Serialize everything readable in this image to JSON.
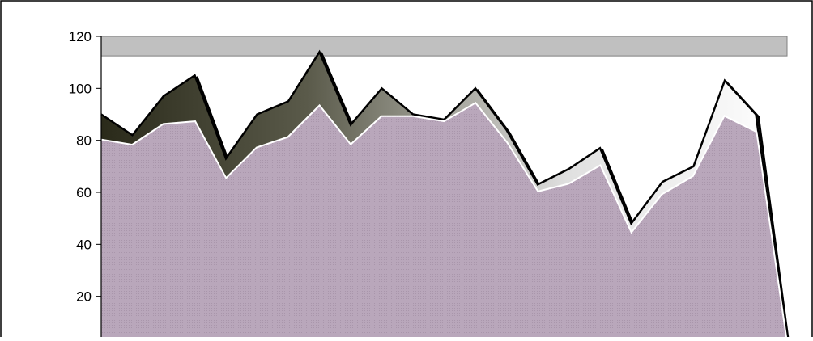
{
  "chart_data": {
    "type": "area",
    "title": "",
    "xlabel": "",
    "ylabel": "",
    "ylim": [
      0,
      120
    ],
    "yticks": [
      20,
      40,
      60,
      80,
      100,
      120
    ],
    "grid": false,
    "legend": "none",
    "x": [
      0,
      1,
      2,
      3,
      4,
      5,
      6,
      7,
      8,
      9,
      10,
      11,
      12,
      13,
      14,
      15,
      16,
      17,
      18,
      19,
      20,
      21,
      22
    ],
    "series": [
      {
        "values": [
          80,
          78,
          86,
          87,
          65,
          77,
          81,
          93,
          78,
          89,
          89,
          87,
          94,
          79,
          60,
          63,
          70,
          44,
          59,
          66,
          89,
          83,
          0
        ]
      },
      {
        "values": [
          90,
          82,
          97,
          105,
          73,
          90,
          95,
          114,
          86,
          100,
          90,
          88,
          100,
          84,
          63,
          69,
          77,
          48,
          64,
          70,
          103,
          90,
          0
        ]
      }
    ],
    "colors": {
      "background": "#ffffff",
      "plot_top_band": "#c0c0c0",
      "base_area": "#b9a7bb",
      "gradient_dark": "#2a2a1a",
      "gradient_mid": "#8a8a7a",
      "gradient_light": "#ffffff",
      "outline": "#000000"
    }
  }
}
